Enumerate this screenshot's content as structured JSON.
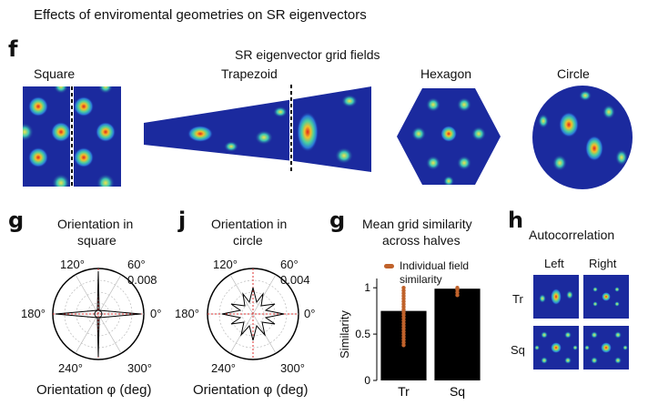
{
  "page_title": "Effects of enviromental geometries on SR eigenvectors",
  "panel_f": {
    "letter": "f",
    "title": "SR eigenvector grid fields",
    "envs": [
      "Square",
      "Trapezoid",
      "Hexagon",
      "Circle"
    ]
  },
  "panel_g1": {
    "letter": "g",
    "title_line1": "Orientation in",
    "title_line2": "square",
    "angle_labels": [
      "120°",
      "60°",
      "180°",
      "0°",
      "240°",
      "300°"
    ],
    "radius_label": "0.008",
    "xlabel": "Orientation φ (deg)"
  },
  "panel_j": {
    "letter": "j",
    "title_line1": "Orientation in",
    "title_line2": "circle",
    "angle_labels": [
      "120°",
      "60°",
      "180°",
      "0°",
      "240°",
      "300°"
    ],
    "radius_label": "0.004",
    "xlabel": "Orientation φ (deg)"
  },
  "panel_g2": {
    "letter": "g",
    "title_line1": "Mean grid similarity",
    "title_line2": "across halves",
    "legend_line1": "Individual field",
    "legend_line2": "similarity",
    "ylabel": "Similarity"
  },
  "panel_h": {
    "letter": "h",
    "title": "Autocorrelation",
    "col_labels": [
      "Left",
      "Right"
    ],
    "row_labels": [
      "Tr",
      "Sq"
    ]
  },
  "chart_data": {
    "type": "bar",
    "categories": [
      "Tr",
      "Sq"
    ],
    "values": [
      0.75,
      0.99
    ],
    "ylabel": "Similarity",
    "ylim": [
      0,
      1.1
    ],
    "yticks": [
      0,
      0.5,
      1
    ],
    "ytick_labels": [
      "0",
      "0.5",
      "1"
    ],
    "bar_color": "#000000",
    "point_color": "#c0622b"
  },
  "colors": {
    "heat_bg": "#1b2a9e",
    "heat_mid": "#22b4c8",
    "heat_hi": "#f2e44a",
    "heat_peak": "#e0231c",
    "divider": "#000000"
  }
}
